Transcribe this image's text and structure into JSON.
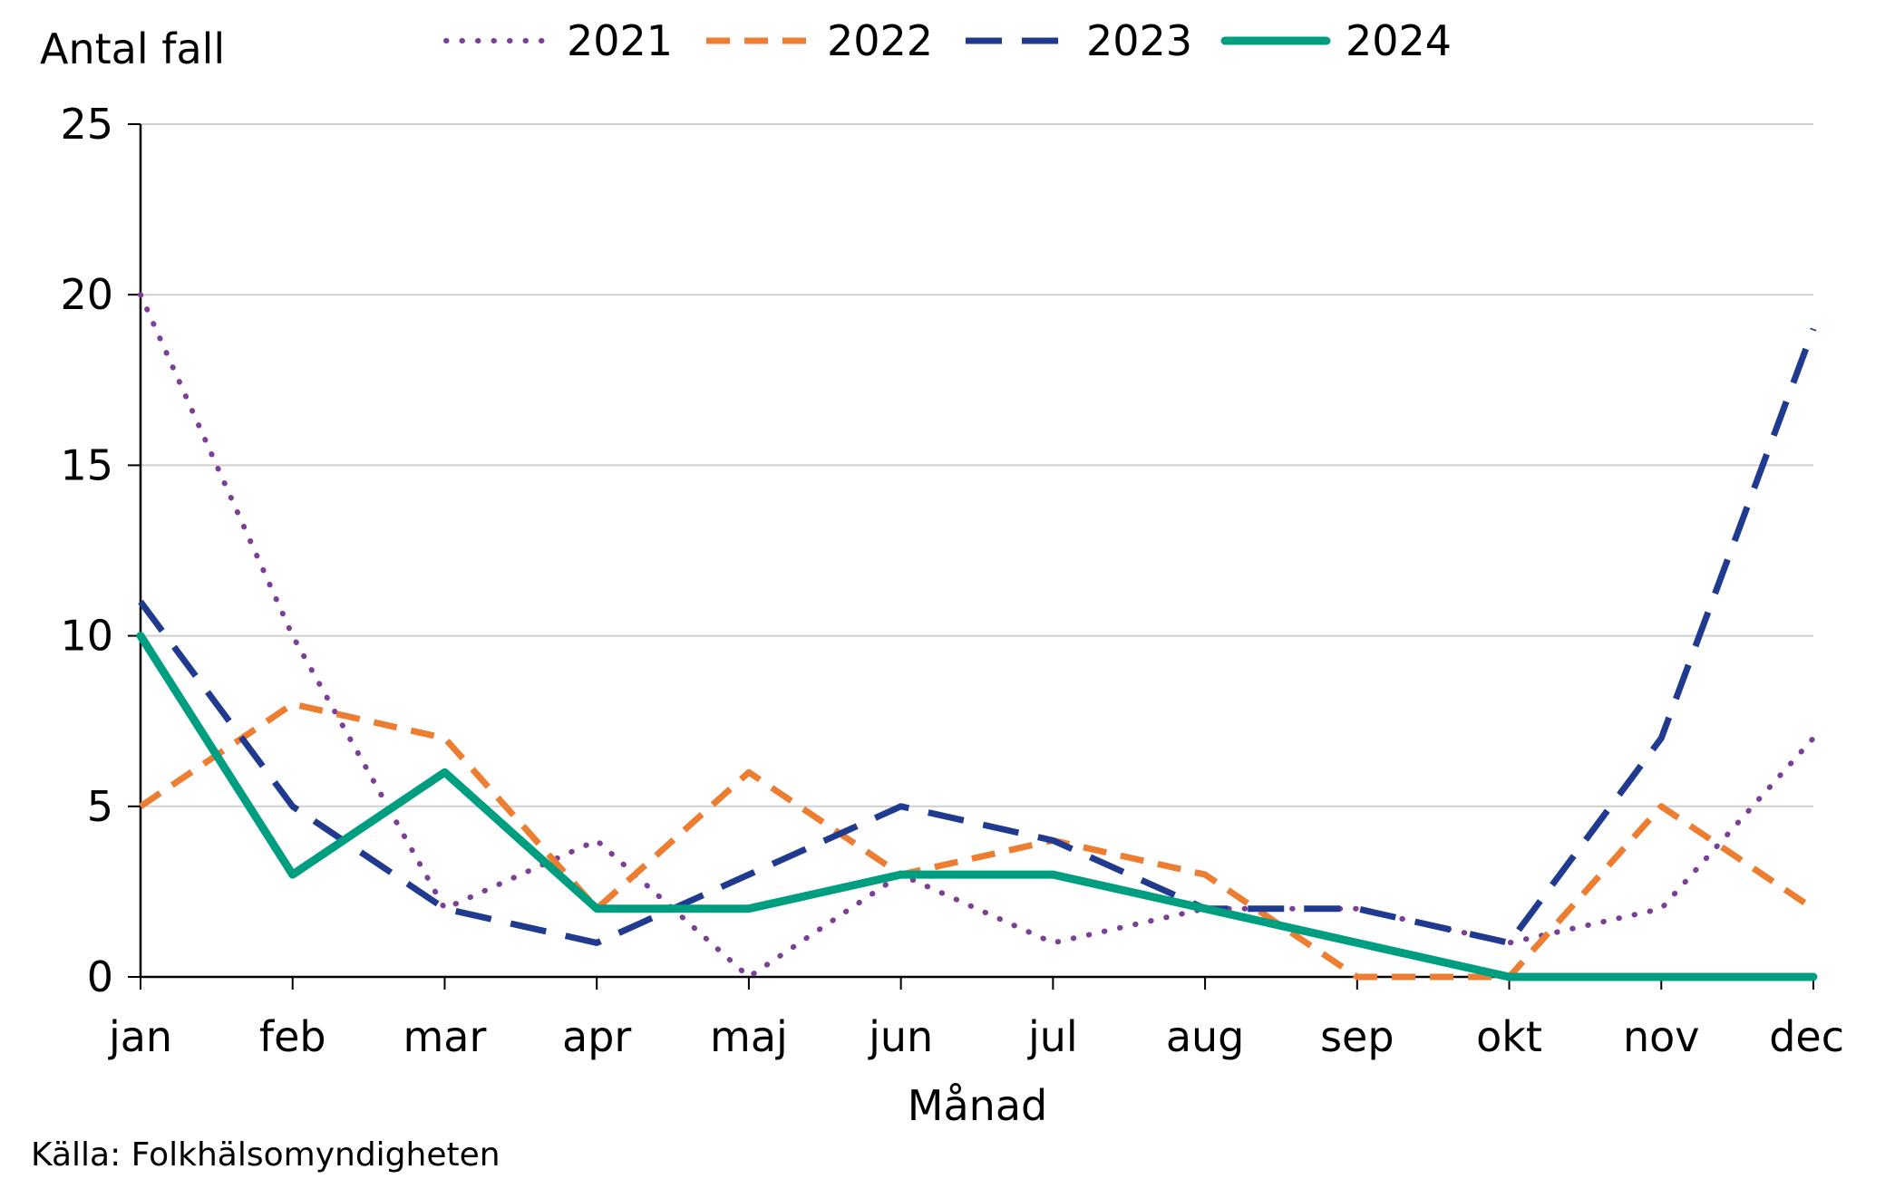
{
  "chart_data": {
    "type": "line",
    "ylabel": "Antal fall",
    "xlabel": "Månad",
    "source": "Källa: Folkhälsomyndigheten",
    "categories": [
      "jan",
      "feb",
      "mar",
      "apr",
      "maj",
      "jun",
      "jul",
      "aug",
      "sep",
      "okt",
      "nov",
      "dec"
    ],
    "ylim": [
      0,
      25
    ],
    "yticks": [
      "0",
      "5",
      "10",
      "15",
      "20",
      "25"
    ],
    "grid": true,
    "legend_position": "top",
    "series": [
      {
        "name": "2021",
        "color": "#7B3F98",
        "style": "dotted",
        "values": [
          20,
          10,
          2,
          4,
          0,
          3,
          1,
          2,
          2,
          1,
          2,
          7
        ]
      },
      {
        "name": "2022",
        "color": "#ED7D31",
        "style": "dashed",
        "values": [
          5,
          8,
          7,
          2,
          6,
          3,
          4,
          3,
          0,
          0,
          5,
          2
        ]
      },
      {
        "name": "2023",
        "color": "#1F3A8F",
        "style": "long-dashed",
        "values": [
          11,
          5,
          2,
          1,
          3,
          5,
          4,
          2,
          2,
          1,
          7,
          19
        ]
      },
      {
        "name": "2024",
        "color": "#009E80",
        "style": "solid",
        "values": [
          10,
          3,
          6,
          2,
          2,
          3,
          3,
          2,
          1,
          0,
          0,
          0
        ]
      }
    ]
  }
}
